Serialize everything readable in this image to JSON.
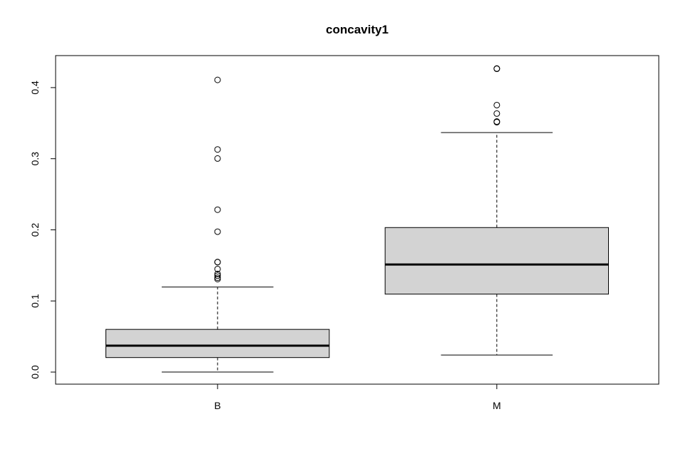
{
  "chart_data": {
    "type": "boxplot",
    "title": "concavity1",
    "xlabel": "",
    "ylabel": "",
    "ylim": [
      -0.017,
      0.445
    ],
    "yticks": [
      "0.0",
      "0.1",
      "0.2",
      "0.3",
      "0.4"
    ],
    "ytick_values": [
      0,
      0.1,
      0.2,
      0.3,
      0.4
    ],
    "categories": [
      "B",
      "M"
    ],
    "boxes": [
      {
        "category": "B",
        "whisker_low": 0.0,
        "q1": 0.0204,
        "median": 0.0371,
        "q3": 0.06,
        "whisker_high": 0.1195,
        "outliers": [
          0.4108,
          0.313,
          0.3003,
          0.2283,
          0.1974,
          0.1547,
          0.1545,
          0.1449,
          0.138,
          0.1355,
          0.1327,
          0.1307
        ]
      },
      {
        "category": "M",
        "whisker_low": 0.024,
        "q1": 0.1096,
        "median": 0.1513,
        "q3": 0.2032,
        "whisker_high": 0.3368,
        "outliers": [
          0.4268,
          0.4264,
          0.3754,
          0.3635,
          0.3523,
          0.3514
        ]
      }
    ],
    "box_fill": "#d3d3d3",
    "grid": false
  }
}
